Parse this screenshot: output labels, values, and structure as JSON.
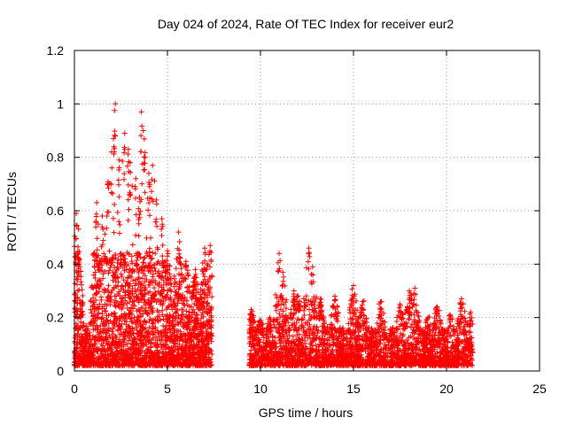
{
  "chart_data": {
    "type": "scatter",
    "title": "Day 024 of 2024, Rate Of TEC Index for receiver eur2",
    "xlabel": "GPS time / hours",
    "ylabel": "ROTI / TECUs",
    "xlim": [
      0,
      25
    ],
    "ylim": [
      0,
      1.2
    ],
    "xticks": [
      0,
      5,
      10,
      15,
      20,
      25
    ],
    "yticks": [
      0,
      0.2,
      0.4,
      0.6,
      0.8,
      1,
      1.2
    ],
    "xtick_labels": [
      "0",
      "5",
      "10",
      "15",
      "20",
      "25"
    ],
    "ytick_labels": [
      "0",
      "0.2",
      "0.4",
      "0.6",
      "0.8",
      "1",
      "1.2"
    ],
    "grid": true,
    "marker": "+",
    "marker_color": "#ff0000",
    "segments": [
      {
        "x_start": 0.0,
        "x_end": 7.4,
        "peaks": [
          [
            0.1,
            0.59
          ],
          [
            0.2,
            0.44
          ],
          [
            1.2,
            0.63
          ],
          [
            1.5,
            0.58
          ],
          [
            1.8,
            0.7
          ],
          [
            2.0,
            0.82
          ],
          [
            2.1,
            0.87
          ],
          [
            2.2,
            1.0
          ],
          [
            2.4,
            0.79
          ],
          [
            2.7,
            0.89
          ],
          [
            2.9,
            0.83
          ],
          [
            3.0,
            0.78
          ],
          [
            3.3,
            0.72
          ],
          [
            3.5,
            0.65
          ],
          [
            3.6,
            0.97
          ],
          [
            3.7,
            0.9
          ],
          [
            3.8,
            0.8
          ],
          [
            4.0,
            0.74
          ],
          [
            4.2,
            0.77
          ],
          [
            4.4,
            0.64
          ],
          [
            4.7,
            0.57
          ],
          [
            5.0,
            0.45
          ],
          [
            5.6,
            0.52
          ],
          [
            6.0,
            0.41
          ],
          [
            6.5,
            0.38
          ],
          [
            7.0,
            0.46
          ],
          [
            7.3,
            0.47
          ]
        ]
      },
      {
        "x_start": 9.4,
        "x_end": 21.4,
        "peaks": [
          [
            9.5,
            0.23
          ],
          [
            10.0,
            0.18
          ],
          [
            10.5,
            0.2
          ],
          [
            11.0,
            0.44
          ],
          [
            11.2,
            0.37
          ],
          [
            11.8,
            0.3
          ],
          [
            12.0,
            0.28
          ],
          [
            12.6,
            0.46
          ],
          [
            12.8,
            0.39
          ],
          [
            13.2,
            0.27
          ],
          [
            14.0,
            0.28
          ],
          [
            15.0,
            0.32
          ],
          [
            15.5,
            0.26
          ],
          [
            16.5,
            0.26
          ],
          [
            17.5,
            0.25
          ],
          [
            18.0,
            0.3
          ],
          [
            18.3,
            0.31
          ],
          [
            19.0,
            0.2
          ],
          [
            19.5,
            0.24
          ],
          [
            20.2,
            0.21
          ],
          [
            20.8,
            0.27
          ],
          [
            21.3,
            0.22
          ]
        ]
      }
    ]
  }
}
